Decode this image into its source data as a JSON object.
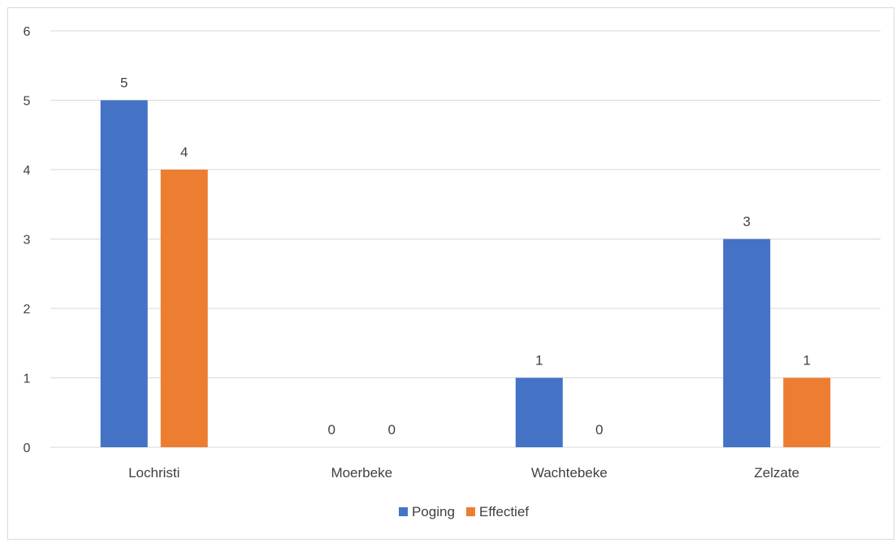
{
  "chart_data": {
    "type": "bar",
    "title": "",
    "xlabel": "",
    "ylabel": "",
    "categories": [
      "Lochristi",
      "Moerbeke",
      "Wachtebeke",
      "Zelzate"
    ],
    "series": [
      {
        "name": "Poging",
        "values": [
          5,
          0,
          1,
          3
        ],
        "color": "#4472C4"
      },
      {
        "name": "Effectief",
        "values": [
          4,
          0,
          0,
          1
        ],
        "color": "#ED7D31"
      }
    ],
    "ylim": [
      0,
      6
    ],
    "yticks": [
      "0",
      "1",
      "2",
      "3",
      "4",
      "5",
      "6"
    ],
    "data_labels": true,
    "grid": true,
    "gridline_color": "#d9d9d9",
    "legend_position": "bottom"
  }
}
